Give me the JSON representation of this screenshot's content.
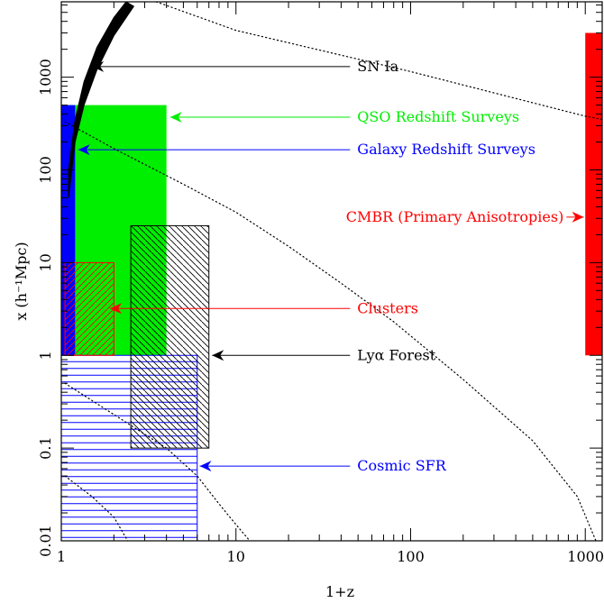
{
  "chart_data": {
    "type": "scatter",
    "xlabel": "1+z",
    "ylabel": "x (h⁻¹Mpc)",
    "xscale": "log",
    "yscale": "log",
    "xlim": [
      1,
      1250
    ],
    "ylim": [
      0.01,
      6500
    ],
    "x_ticks": [
      {
        "value": 1,
        "label": "1"
      },
      {
        "value": 10,
        "label": "10"
      },
      {
        "value": 100,
        "label": "100"
      },
      {
        "value": 1000,
        "label": "1000"
      }
    ],
    "y_ticks": [
      {
        "value": 0.01,
        "label": "0.01"
      },
      {
        "value": 0.1,
        "label": "0.1"
      },
      {
        "value": 1,
        "label": "1"
      },
      {
        "value": 10,
        "label": "10"
      },
      {
        "value": 100,
        "label": "100"
      },
      {
        "value": 1000,
        "label": "1000"
      }
    ],
    "regions": [
      {
        "name": "SN Ia",
        "kind": "band",
        "color": "#000000",
        "lower": [
          [
            1.1,
            50
          ],
          [
            1.2,
            200
          ],
          [
            1.35,
            500
          ],
          [
            1.6,
            1200
          ],
          [
            2.0,
            2800
          ],
          [
            2.6,
            5800
          ]
        ],
        "upper": [
          [
            1.1,
            100
          ],
          [
            1.2,
            350
          ],
          [
            1.35,
            900
          ],
          [
            1.6,
            2100
          ],
          [
            2.0,
            4400
          ],
          [
            2.35,
            6500
          ]
        ]
      },
      {
        "name": "QSO Redshift Surveys",
        "kind": "filled",
        "color": "#00ee00",
        "x": [
          1.0,
          4.0
        ],
        "y": [
          1,
          500
        ]
      },
      {
        "name": "Galaxy Redshift Surveys",
        "kind": "filled",
        "color": "#0000ff",
        "x": [
          1.0,
          1.2
        ],
        "y": [
          1,
          500
        ]
      },
      {
        "name": "CMBR (Primary Anisotropies)",
        "kind": "filled",
        "color": "#ff0000",
        "x": [
          1000,
          1250
        ],
        "y": [
          1,
          3000
        ]
      },
      {
        "name": "Clusters",
        "kind": "hatch-diag",
        "color": "#ff0000",
        "x": [
          1.05,
          2.0
        ],
        "y": [
          1,
          10
        ]
      },
      {
        "name": "Lyα Forest",
        "kind": "hatch-back",
        "color": "#000000",
        "x": [
          2.5,
          7.0
        ],
        "y": [
          0.1,
          25
        ]
      },
      {
        "name": "Cosmic SFR",
        "kind": "hatch-horiz",
        "color": "#0000ff",
        "x": [
          1.0,
          6.0
        ],
        "y": [
          0.01,
          1
        ]
      }
    ],
    "curves": [
      {
        "style": "dotted",
        "color": "#000000",
        "points": [
          [
            3.5,
            6500
          ],
          [
            10,
            3200
          ],
          [
            100,
            1150
          ],
          [
            1000,
            380
          ],
          [
            1250,
            350
          ]
        ]
      },
      {
        "style": "dotted",
        "color": "#000000",
        "points": [
          [
            1.05,
            330
          ],
          [
            2,
            170
          ],
          [
            5,
            70
          ],
          [
            10,
            35
          ],
          [
            20,
            15
          ],
          [
            40,
            6
          ],
          [
            80,
            2.3
          ],
          [
            200,
            0.55
          ],
          [
            500,
            0.12
          ],
          [
            900,
            0.03
          ],
          [
            1150,
            0.01
          ]
        ]
      },
      {
        "style": "dotted",
        "color": "#000000",
        "points": [
          [
            1.05,
            0.5
          ],
          [
            2,
            0.23
          ],
          [
            4,
            0.1
          ],
          [
            6,
            0.05
          ],
          [
            8,
            0.025
          ],
          [
            10,
            0.015
          ],
          [
            12,
            0.01
          ]
        ]
      },
      {
        "style": "dotted",
        "color": "#000000",
        "points": [
          [
            1.05,
            0.05
          ],
          [
            1.5,
            0.03
          ],
          [
            2,
            0.018
          ],
          [
            2.4,
            0.01
          ]
        ]
      }
    ],
    "annotations": [
      {
        "text": "SN Ia",
        "color": "#000000",
        "arrow_from": [
          45,
          1300
        ],
        "arrow_to": [
          1.5,
          1300
        ]
      },
      {
        "text": "QSO Redshift Surveys",
        "color": "#00ee00",
        "arrow_from": [
          45,
          370
        ],
        "arrow_to": [
          4.2,
          370
        ]
      },
      {
        "text": "Galaxy Redshift Surveys",
        "color": "#0000ff",
        "arrow_from": [
          45,
          165
        ],
        "arrow_to": [
          1.25,
          165
        ]
      },
      {
        "text": "CMBR (Primary Anisotropies)",
        "color": "#ff0000",
        "arrow_from": [
          780,
          31
        ],
        "arrow_to": [
          980,
          31
        ],
        "label_side": "left"
      },
      {
        "text": "Clusters",
        "color": "#ff0000",
        "arrow_from": [
          45,
          3.2
        ],
        "arrow_to": [
          1.9,
          3.2
        ]
      },
      {
        "text": "Lyα Forest",
        "color": "#000000",
        "arrow_from": [
          45,
          1
        ],
        "arrow_to": [
          7.3,
          1
        ]
      },
      {
        "text": "Cosmic SFR",
        "color": "#0000ff",
        "arrow_from": [
          45,
          0.064
        ],
        "arrow_to": [
          6.2,
          0.064
        ]
      }
    ]
  }
}
